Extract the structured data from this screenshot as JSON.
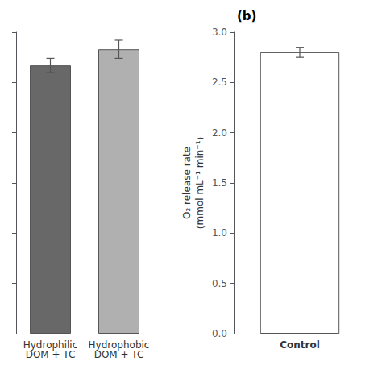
{
  "chart_data": [
    {
      "type": "bar",
      "categories": [
        "Hydrophilic\nDOM + TC",
        "Hydrophobic\nDOM + TC"
      ],
      "values": [
        2.67,
        2.83
      ],
      "errors": [
        0.07,
        0.09
      ],
      "colors": [
        "#686868",
        "#b0b0b0"
      ],
      "ylim": [
        0.0,
        3.0
      ],
      "yticks": [
        0,
        0.5,
        1,
        1.5,
        2,
        2.5,
        3
      ],
      "tick_labels": "x"
    },
    {
      "type": "bar",
      "annotation": "(b)",
      "ylabel": "O₂ release rate\n（mmol mL⁻¹ min⁻¹）",
      "categories": [
        "Control"
      ],
      "values": [
        2.8
      ],
      "errors": [
        0.05
      ],
      "colors": [
        "#ffffff"
      ],
      "ylim": [
        0.0,
        3.0
      ],
      "yticks": [
        {
          "value": 0,
          "label": "0.0"
        },
        0.5,
        {
          "value": 1,
          "label": "1.0"
        },
        1.5,
        {
          "value": 2,
          "label": "2.0"
        },
        2.5,
        {
          "value": 3,
          "label": "3.0"
        }
      ]
    }
  ]
}
